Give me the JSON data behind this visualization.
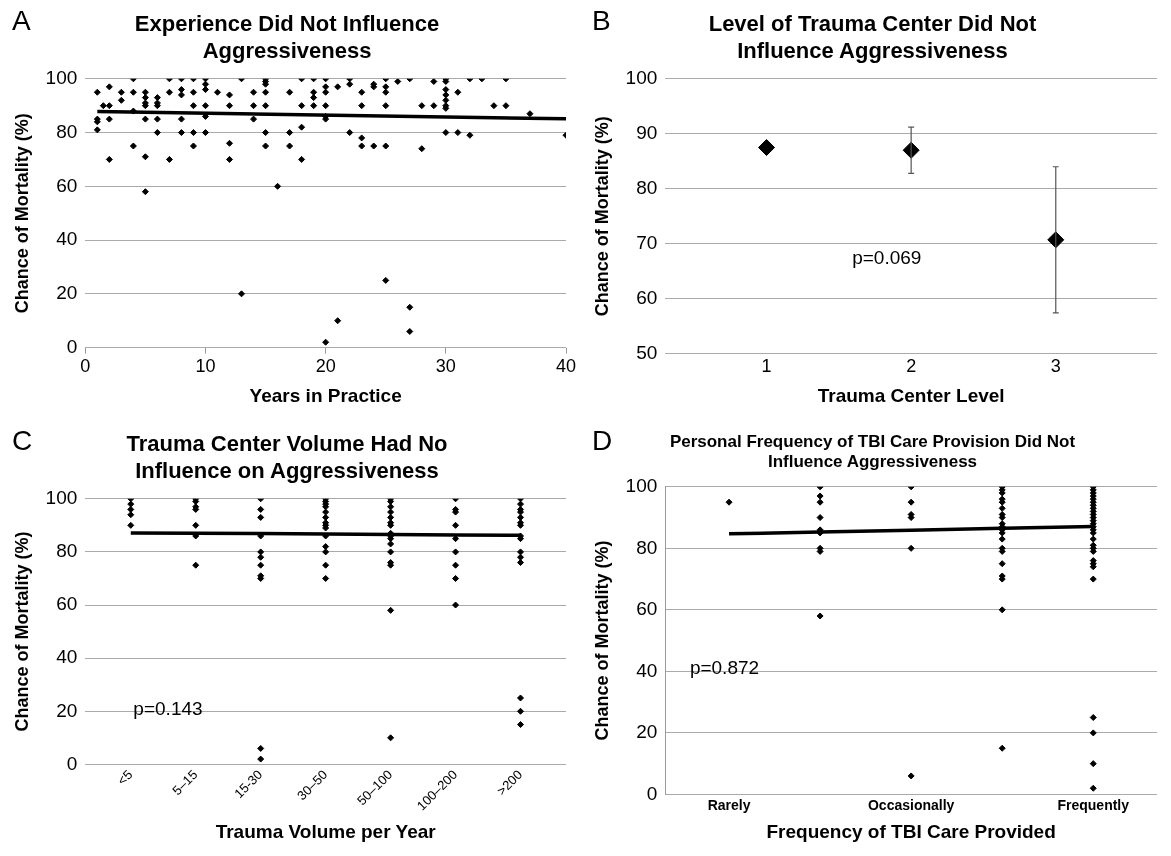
{
  "chart_data": [
    {
      "type": "scatter",
      "title": "Experience Did Not Influence Aggressiveness",
      "xlabel": "Years in Practice",
      "ylabel": "Chance of Mortality (%)",
      "annotations": [
        "A"
      ],
      "xlim": [
        0,
        40
      ],
      "xticks": [
        0,
        10,
        20,
        30,
        40
      ],
      "ylim": [
        0,
        100
      ],
      "yticks": [
        0,
        20,
        40,
        60,
        80,
        100
      ],
      "grid": "y",
      "marker": "diamond",
      "series": [
        {
          "color": "#000000",
          "x": [
            1,
            1,
            1,
            1,
            1.5,
            2,
            2,
            2,
            2,
            3,
            3,
            4,
            4,
            4,
            4,
            5,
            5,
            5,
            5,
            5,
            5,
            5,
            6,
            6,
            6,
            6,
            6,
            7,
            7,
            7,
            8,
            8,
            8,
            8,
            8,
            9,
            9,
            9,
            9,
            9,
            10,
            10,
            10,
            10,
            10,
            10,
            11,
            12,
            12,
            12,
            12,
            13,
            13,
            14,
            14,
            14,
            15,
            15,
            15,
            15,
            15,
            15,
            15,
            16,
            17,
            17,
            17,
            18,
            18,
            18,
            18,
            19,
            19,
            19,
            19,
            20,
            20,
            20,
            20,
            20,
            20,
            20,
            21,
            21,
            22,
            22,
            22,
            23,
            23,
            23,
            23,
            24,
            24,
            24,
            25,
            25,
            25,
            25,
            25,
            25,
            26,
            27,
            27,
            27,
            28,
            28,
            29,
            29,
            30,
            30,
            30,
            30,
            30,
            30,
            30,
            30,
            31,
            31,
            32,
            32,
            33,
            34,
            35,
            35,
            37,
            40
          ],
          "values": [
            95,
            85,
            84,
            81,
            90,
            97,
            90,
            85,
            70,
            95,
            92,
            100,
            95,
            88,
            75,
            95,
            93,
            91,
            90,
            85,
            71,
            58,
            93,
            91,
            90,
            85,
            80,
            100,
            95,
            70,
            100,
            96,
            94,
            85,
            80,
            100,
            95,
            90,
            80,
            75,
            100,
            98,
            96,
            90,
            86,
            80,
            95,
            94,
            90,
            76,
            70,
            100,
            20,
            95,
            90,
            85,
            100,
            99,
            98,
            95,
            90,
            80,
            75,
            60,
            95,
            80,
            75,
            100,
            90,
            82,
            70,
            100,
            95,
            93,
            90,
            100,
            97,
            95,
            90,
            86,
            85,
            2,
            97,
            10,
            100,
            98,
            80,
            95,
            90,
            78,
            75,
            98,
            97,
            75,
            100,
            97,
            95,
            90,
            75,
            25,
            99,
            100,
            15,
            6,
            90,
            74,
            99,
            90,
            100,
            99,
            96,
            94,
            92,
            90,
            89,
            80,
            95,
            80,
            100,
            79,
            100,
            90,
            100,
            90,
            87,
            79
          ]
        },
        {
          "type": "line",
          "marker": "none",
          "color": "#000000",
          "x": [
            1,
            40
          ],
          "values": [
            87.8,
            85.1
          ]
        }
      ]
    },
    {
      "type": "scatter",
      "title": "Level of Trauma Center Did Not Influence Aggressiveness",
      "xlabel": "Trauma Center Level",
      "ylabel": "Chance of Mortality (%)",
      "annotations": [
        "B",
        "p=0.069"
      ],
      "categories": [
        "1",
        "2",
        "3"
      ],
      "values": [
        87.5,
        87,
        70.7
      ],
      "errors": [
        null,
        4.2,
        13.3
      ],
      "color": "#000000",
      "ylim": [
        50,
        100
      ],
      "yticks": [
        50,
        60,
        70,
        80,
        90,
        100
      ],
      "grid": "y",
      "marker": "diamond"
    },
    {
      "type": "scatter",
      "title": "Trauma Center Volume Had No Influence on Aggressiveness",
      "xlabel": "Trauma Volume per Year",
      "ylabel": "Chance of Mortality (%)",
      "annotations": [
        "C",
        "p=0.143"
      ],
      "categories": [
        "<5",
        "5–15",
        "15-30",
        "30–50",
        "50–100",
        "100–200",
        ">200"
      ],
      "ylim": [
        0,
        100
      ],
      "yticks": [
        0,
        20,
        40,
        60,
        80,
        100
      ],
      "grid": "y",
      "marker": "diamond",
      "series": [
        {
          "color": "#000000",
          "values": [
            100,
            100,
            100,
            100,
            100,
            100,
            100
          ]
        },
        {
          "color": "#000000",
          "values": [
            98,
            99,
            96,
            99,
            99,
            96,
            98
          ]
        },
        {
          "color": "#000000",
          "values": [
            96,
            97,
            93,
            98,
            97,
            95,
            96
          ]
        },
        {
          "color": "#000000",
          "values": [
            94,
            96,
            86,
            97,
            95,
            90,
            95
          ]
        },
        {
          "color": "#000000",
          "values": [
            90,
            90,
            80,
            95,
            93,
            85,
            93
          ]
        },
        {
          "color": "#000000",
          "values": [
            null,
            86,
            78,
            93,
            91,
            80,
            91
          ]
        },
        {
          "color": "#000000",
          "values": [
            null,
            75,
            75,
            91,
            90,
            75,
            90
          ]
        },
        {
          "color": "#000000",
          "values": [
            null,
            null,
            71,
            90,
            87,
            70,
            86
          ]
        },
        {
          "color": "#000000",
          "values": [
            null,
            null,
            70,
            89,
            86,
            60,
            85
          ]
        },
        {
          "color": "#000000",
          "values": [
            null,
            null,
            6,
            86,
            85,
            null,
            80
          ]
        },
        {
          "color": "#000000",
          "values": [
            null,
            null,
            2,
            82,
            83,
            null,
            78
          ]
        },
        {
          "color": "#000000",
          "values": [
            null,
            null,
            null,
            80,
            80,
            null,
            76
          ]
        },
        {
          "color": "#000000",
          "values": [
            null,
            null,
            null,
            75,
            76,
            null,
            25
          ]
        },
        {
          "color": "#000000",
          "values": [
            null,
            null,
            null,
            70,
            75,
            null,
            20
          ]
        },
        {
          "color": "#000000",
          "values": [
            null,
            null,
            null,
            null,
            58,
            null,
            15
          ]
        },
        {
          "color": "#000000",
          "values": [
            null,
            null,
            null,
            null,
            10,
            null,
            null
          ]
        },
        {
          "type": "line",
          "marker": "none",
          "color": "#000000",
          "values": [
            87.1,
            87.0,
            86.9,
            86.7,
            86.6,
            86.4,
            86.3
          ]
        }
      ]
    },
    {
      "type": "scatter",
      "title": "Personal Frequency of TBI Care Provision Did Not Influence Aggressiveness",
      "xlabel": "Frequency of TBI Care Provided",
      "ylabel": "Chance of Mortality (%)",
      "annotations": [
        "D",
        "p=0.872"
      ],
      "categories": [
        "Rarely",
        null,
        "Occasionally",
        null,
        "Frequently"
      ],
      "ylim": [
        0,
        100
      ],
      "yticks": [
        0,
        20,
        40,
        60,
        80,
        100
      ],
      "grid": "y",
      "marker": "diamond",
      "series": [
        {
          "color": "#000000",
          "values": [
            95,
            100,
            100,
            100,
            100
          ]
        },
        {
          "color": "#000000",
          "values": [
            null,
            97,
            95,
            99,
            99
          ]
        },
        {
          "color": "#000000",
          "values": [
            null,
            95,
            91,
            98,
            98
          ]
        },
        {
          "color": "#000000",
          "values": [
            null,
            90,
            90,
            96,
            97
          ]
        },
        {
          "color": "#000000",
          "values": [
            null,
            86,
            80,
            95,
            96
          ]
        },
        {
          "color": "#000000",
          "values": [
            null,
            85,
            6,
            93,
            95
          ]
        },
        {
          "color": "#000000",
          "values": [
            null,
            80,
            null,
            91,
            94
          ]
        },
        {
          "color": "#000000",
          "values": [
            null,
            79,
            null,
            90,
            93
          ]
        },
        {
          "color": "#000000",
          "values": [
            null,
            58,
            null,
            88,
            92
          ]
        },
        {
          "color": "#000000",
          "values": [
            null,
            null,
            null,
            87,
            91
          ]
        },
        {
          "color": "#000000",
          "values": [
            null,
            null,
            null,
            86,
            90
          ]
        },
        {
          "color": "#000000",
          "values": [
            null,
            null,
            null,
            85,
            89
          ]
        },
        {
          "color": "#000000",
          "values": [
            null,
            null,
            null,
            83,
            88
          ]
        },
        {
          "color": "#000000",
          "values": [
            null,
            null,
            null,
            80,
            87
          ]
        },
        {
          "color": "#000000",
          "values": [
            null,
            null,
            null,
            79,
            86
          ]
        },
        {
          "color": "#000000",
          "values": [
            null,
            null,
            null,
            75,
            85
          ]
        },
        {
          "color": "#000000",
          "values": [
            null,
            null,
            null,
            71,
            83
          ]
        },
        {
          "color": "#000000",
          "values": [
            null,
            null,
            null,
            70,
            81
          ]
        },
        {
          "color": "#000000",
          "values": [
            null,
            null,
            null,
            60,
            80
          ]
        },
        {
          "color": "#000000",
          "values": [
            null,
            null,
            null,
            15,
            79
          ]
        },
        {
          "color": "#000000",
          "values": [
            null,
            null,
            null,
            null,
            76
          ]
        },
        {
          "color": "#000000",
          "values": [
            null,
            null,
            null,
            null,
            75
          ]
        },
        {
          "color": "#000000",
          "values": [
            null,
            null,
            null,
            null,
            74
          ]
        },
        {
          "color": "#000000",
          "values": [
            null,
            null,
            null,
            null,
            70
          ]
        },
        {
          "color": "#000000",
          "values": [
            null,
            null,
            null,
            null,
            25
          ]
        },
        {
          "color": "#000000",
          "values": [
            null,
            null,
            null,
            null,
            20
          ]
        },
        {
          "color": "#000000",
          "values": [
            null,
            null,
            null,
            null,
            10
          ]
        },
        {
          "color": "#000000",
          "values": [
            null,
            null,
            null,
            null,
            2
          ]
        },
        {
          "type": "line",
          "marker": "none",
          "color": "#000000",
          "values": [
            84.7,
            85.3,
            85.9,
            86.5,
            87.1
          ]
        }
      ]
    }
  ]
}
